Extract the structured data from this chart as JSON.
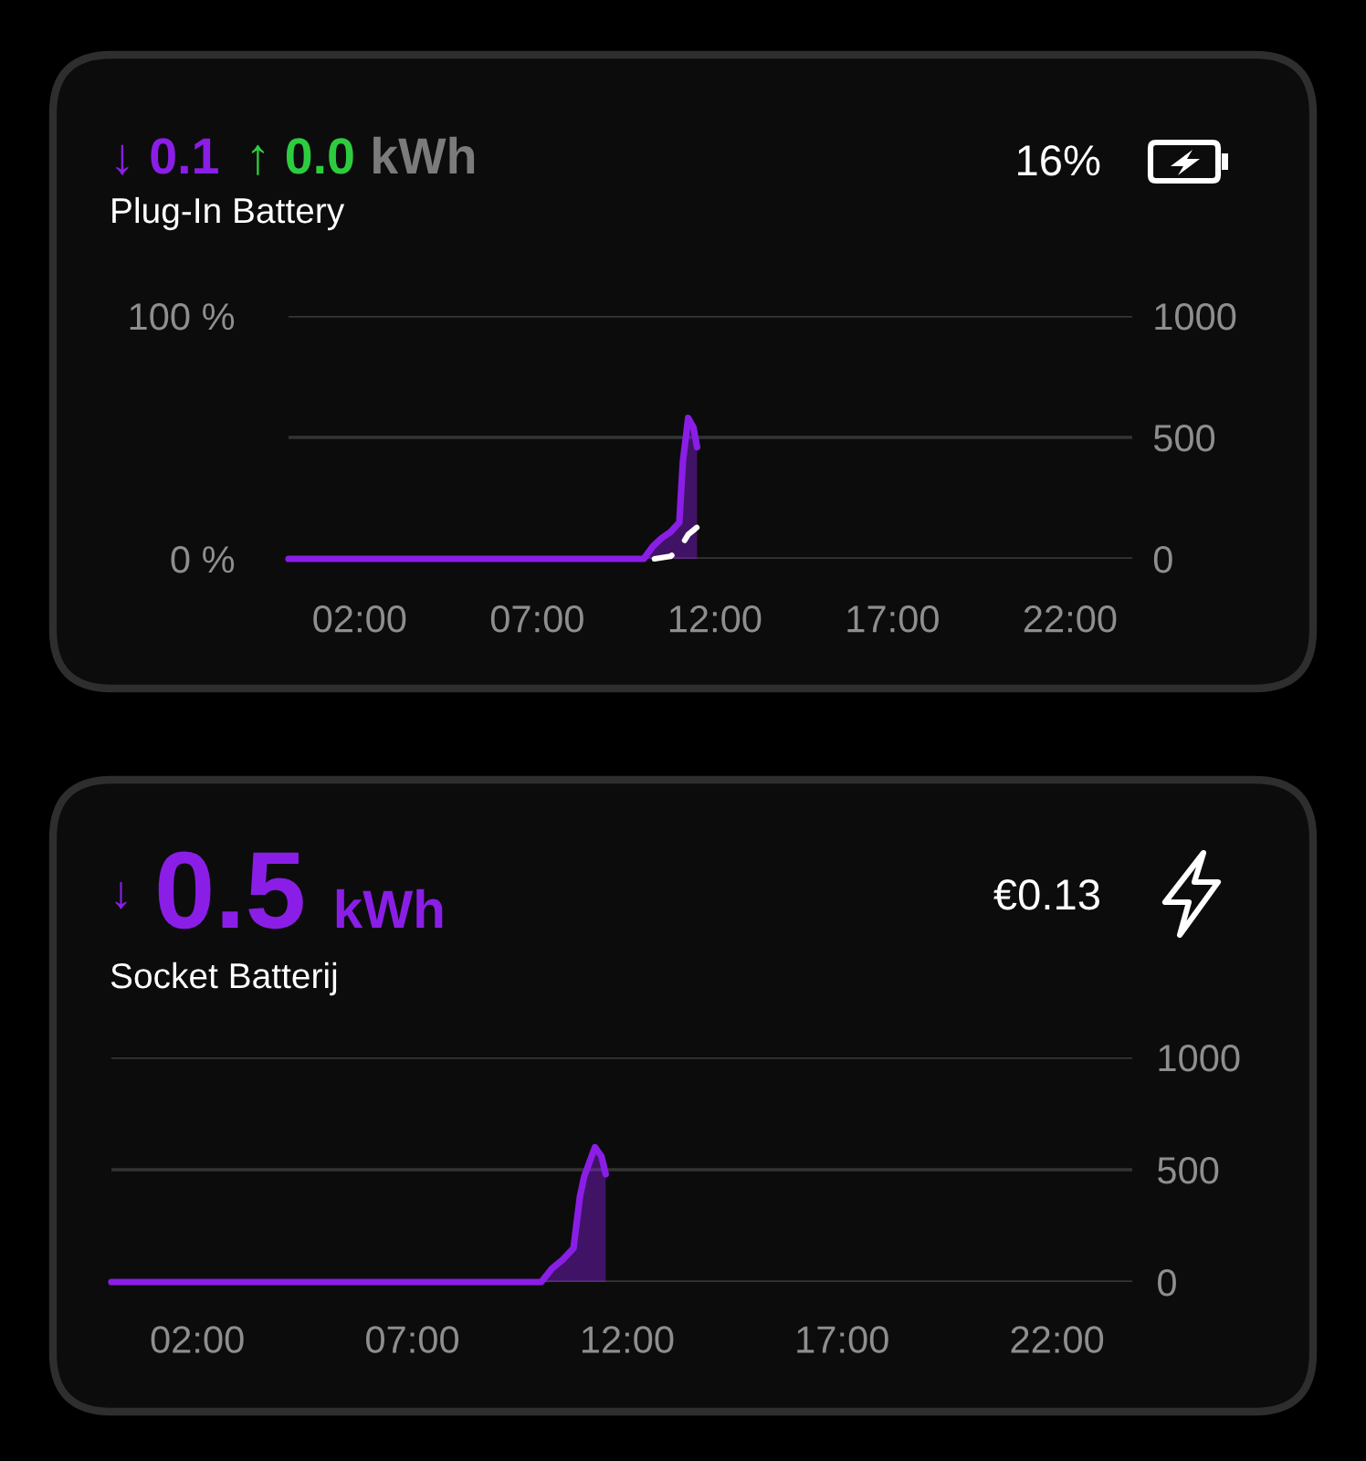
{
  "chart_data": [
    {
      "type": "area",
      "title": "Plug-In Battery",
      "annotations": [
        "↓ 0.1",
        "↑ 0.0",
        "kWh",
        "16%"
      ],
      "xlim": [
        0,
        23.75
      ],
      "xticks": [
        {
          "value": 2,
          "label": "02:00"
        },
        {
          "value": 7,
          "label": "07:00"
        },
        {
          "value": 12,
          "label": "12:00"
        },
        {
          "value": 17,
          "label": "17:00"
        },
        {
          "value": 22,
          "label": "22:00"
        }
      ],
      "ylim": [
        0,
        100
      ],
      "yticks": [
        {
          "value": 0,
          "label": "0 %"
        },
        {
          "value": 100,
          "label": "100 %"
        }
      ],
      "y2lim": [
        0,
        1000
      ],
      "y2ticks": [
        0,
        500,
        1000
      ],
      "grid": "y",
      "series": [
        {
          "axis": "y2",
          "color": "#8a1ee6",
          "x": [
            0,
            10.0,
            10.25,
            10.5,
            10.75,
            11.0,
            11.1,
            11.25,
            11.4,
            11.5
          ],
          "values": [
            0,
            0,
            50,
            85,
            110,
            150,
            400,
            580,
            540,
            460
          ]
        },
        {
          "type": "line",
          "axis": "y",
          "color": "#ffffff",
          "line_style": "dashed",
          "x": [
            10.3,
            10.75,
            11.0,
            11.25,
            11.5
          ],
          "values": [
            0,
            1,
            4,
            10,
            13
          ]
        }
      ]
    },
    {
      "type": "area",
      "title": "Socket Batterij",
      "annotations": [
        "↓",
        "0.5",
        "kWh",
        "€0.13"
      ],
      "xlim": [
        0,
        23.75
      ],
      "xticks": [
        {
          "value": 2,
          "label": "02:00"
        },
        {
          "value": 7,
          "label": "07:00"
        },
        {
          "value": 12,
          "label": "12:00"
        },
        {
          "value": 17,
          "label": "17:00"
        },
        {
          "value": 22,
          "label": "22:00"
        }
      ],
      "y2lim": [
        0,
        1000
      ],
      "y2ticks": [
        0,
        500,
        1000
      ],
      "grid": "y",
      "series": [
        {
          "axis": "y2",
          "color": "#8a1ee6",
          "x": [
            0,
            10.0,
            10.25,
            10.5,
            10.75,
            10.9,
            11.0,
            11.25,
            11.4,
            11.5
          ],
          "values": [
            0,
            0,
            60,
            100,
            150,
            380,
            470,
            600,
            560,
            480
          ]
        }
      ]
    }
  ]
}
